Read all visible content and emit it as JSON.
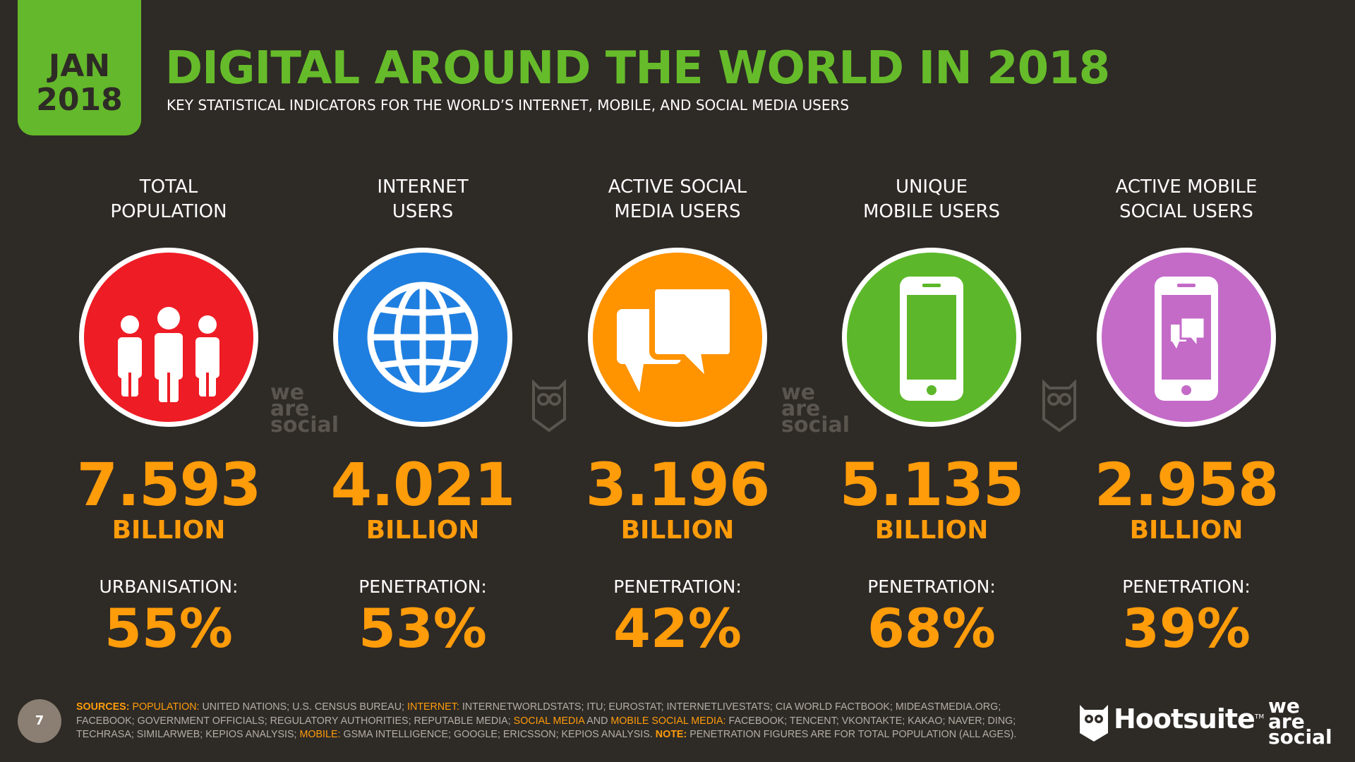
{
  "badge": {
    "month": "JAN",
    "year": "2018"
  },
  "header": {
    "title": "DIGITAL AROUND THE WORLD IN 2018",
    "subtitle": "KEY STATISTICAL INDICATORS FOR THE WORLD’S INTERNET, MOBILE, AND SOCIAL MEDIA USERS"
  },
  "stats": [
    {
      "label": [
        "TOTAL",
        "POPULATION"
      ],
      "color": "#ee1c25",
      "value": "7.593",
      "unit": "BILLION",
      "metric_label": "URBANISATION:",
      "metric_value": "55%"
    },
    {
      "label": [
        "INTERNET",
        "USERS"
      ],
      "color": "#1f7fe0",
      "value": "4.021",
      "unit": "BILLION",
      "metric_label": "PENETRATION:",
      "metric_value": "53%"
    },
    {
      "label": [
        "ACTIVE SOCIAL",
        "MEDIA USERS"
      ],
      "color": "#ff9300",
      "value": "3.196",
      "unit": "BILLION",
      "metric_label": "PENETRATION:",
      "metric_value": "42%"
    },
    {
      "label": [
        "UNIQUE",
        "MOBILE USERS"
      ],
      "color": "#5cb82a",
      "value": "5.135",
      "unit": "BILLION",
      "metric_label": "PENETRATION:",
      "metric_value": "68%"
    },
    {
      "label": [
        "ACTIVE MOBILE",
        "SOCIAL USERS"
      ],
      "color": "#c46bc8",
      "value": "2.958",
      "unit": "BILLION",
      "metric_label": "PENETRATION:",
      "metric_value": "39%"
    }
  ],
  "watermark": [
    "we",
    "are",
    "social"
  ],
  "footer": {
    "page": "7",
    "sources": [
      {
        "text": "SOURCES: ",
        "accent": true,
        "bold": true
      },
      {
        "text": "POPULATION: ",
        "accent": true
      },
      {
        "text": "UNITED NATIONS; U.S. CENSUS BUREAU; ",
        "accent": false
      },
      {
        "text": "INTERNET: ",
        "accent": true
      },
      {
        "text": "INTERNETWORLDSTATS; ITU; EUROSTAT; INTERNETLIVESTATS; CIA WORLD FACTBOOK; MIDEASTMEDIA.ORG; FACEBOOK; GOVERNMENT OFFICIALS; REGULATORY AUTHORITIES; REPUTABLE MEDIA; ",
        "accent": false
      },
      {
        "text": "SOCIAL MEDIA",
        "accent": true
      },
      {
        "text": " AND ",
        "accent": false
      },
      {
        "text": "MOBILE SOCIAL MEDIA: ",
        "accent": true
      },
      {
        "text": "FACEBOOK; TENCENT; VKONTAKTE; KAKAO; NAVER; DING; TECHRASA; SIMILARWEB; KEPIOS ANALYSIS; ",
        "accent": false
      },
      {
        "text": "MOBILE: ",
        "accent": true
      },
      {
        "text": "GSMA INTELLIGENCE; GOOGLE; ERICSSON; KEPIOS ANALYSIS. ",
        "accent": false
      },
      {
        "text": "NOTE: ",
        "accent": true,
        "bold": true
      },
      {
        "text": "PENETRATION FIGURES ARE FOR TOTAL POPULATION (ALL AGES).",
        "accent": false
      }
    ],
    "hootsuite": "Hootsuite",
    "trademark": "TM",
    "we_are_social": [
      "we",
      "are",
      "social"
    ]
  }
}
